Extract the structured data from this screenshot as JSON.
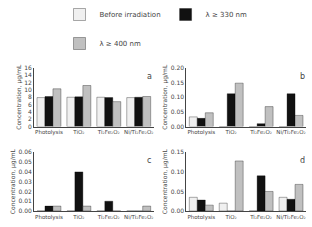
{
  "chart_data": [
    {
      "type": "bar",
      "ylabel": "Concentration, μg/mL",
      "categories": [
        "Photolysis",
        "TiO₂",
        "Ti₂Fe₂O₂",
        "Ni/Ti₂Fe₂O₂"
      ],
      "series": [
        {
          "name": "Before irradiation",
          "color": "#f0f0f0",
          "values": [
            7.9,
            8.0,
            8.0,
            7.9
          ]
        },
        {
          "name": "λ ≥ 330 nm",
          "color": "#111111",
          "values": [
            8.2,
            8.1,
            7.9,
            8.0
          ]
        },
        {
          "name": "λ ≥ 400 nm",
          "color": "#c0c0c0",
          "values": [
            10.3,
            11.2,
            6.8,
            8.2
          ]
        }
      ],
      "ylim": [
        0,
        16
      ],
      "yticks": [
        0,
        2,
        4,
        6,
        8,
        10,
        12,
        14,
        16
      ],
      "grid": false,
      "annotations": [
        "a"
      ]
    },
    {
      "type": "bar",
      "ylabel": "Concentration, μg/mL",
      "categories": [
        "Photolysis",
        "TiO₂",
        "Ti₂Fe₂O₂",
        "Ni/Ti₂Fe₂O₂"
      ],
      "series": [
        {
          "name": "Before irradiation",
          "color": "#f0f0f0",
          "values": [
            0.033,
            0.0,
            0.0,
            0.0
          ]
        },
        {
          "name": "λ ≥ 330 nm",
          "color": "#111111",
          "values": [
            0.028,
            0.112,
            0.01,
            0.112
          ]
        },
        {
          "name": "λ ≥ 400 nm",
          "color": "#c0c0c0",
          "values": [
            0.047,
            0.148,
            0.068,
            0.038
          ]
        }
      ],
      "ylim": [
        0,
        0.2
      ],
      "yticks": [
        {
          "value": 0,
          "label": "0.00"
        },
        0.05,
        {
          "value": 0.1,
          "label": "0.10"
        },
        0.15,
        {
          "value": 0.2,
          "label": "0.20"
        }
      ],
      "grid": false,
      "annotations": [
        "b"
      ]
    },
    {
      "type": "bar",
      "ylabel": "Concentration, μg/mL",
      "categories": [
        "Photolysis",
        "TiO₂",
        "Ti₂Fe₂O₂",
        "Ni/Ti₂Fe₂O₂"
      ],
      "series": [
        {
          "name": "Before irradiation",
          "color": "#f0f0f0",
          "values": [
            0.0,
            0.0,
            0.0,
            0.0
          ]
        },
        {
          "name": "λ ≥ 330 nm",
          "color": "#111111",
          "values": [
            0.005,
            0.04,
            0.01,
            0.0
          ]
        },
        {
          "name": "λ ≥ 400 nm",
          "color": "#c0c0c0",
          "values": [
            0.005,
            0.005,
            0.0,
            0.005
          ]
        }
      ],
      "ylim": [
        0,
        0.06
      ],
      "yticks": [
        {
          "value": 0,
          "label": "0.00"
        },
        0.01,
        0.02,
        0.03,
        0.04,
        0.05,
        0.06
      ],
      "grid": false,
      "annotations": [
        "c"
      ]
    },
    {
      "type": "bar",
      "ylabel": "Concentration, μg/mL",
      "categories": [
        "Photolysis",
        "TiO₂",
        "Ti₂Fe₂O₂",
        "Ni/Ti₂Fe₂O₂"
      ],
      "series": [
        {
          "name": "Before irradiation",
          "color": "#f0f0f0",
          "values": [
            0.035,
            0.02,
            0.0,
            0.035
          ]
        },
        {
          "name": "λ ≥ 330 nm",
          "color": "#111111",
          "values": [
            0.028,
            0.0,
            0.09,
            0.03
          ]
        },
        {
          "name": "λ ≥ 400 nm",
          "color": "#c0c0c0",
          "values": [
            0.015,
            0.128,
            0.05,
            0.068
          ]
        }
      ],
      "ylim": [
        0,
        0.15
      ],
      "yticks": [
        {
          "value": 0,
          "label": "0.00"
        },
        0.05,
        {
          "value": 0.1,
          "label": "0.10"
        },
        0.15
      ],
      "grid": false,
      "annotations": [
        "d"
      ]
    }
  ]
}
